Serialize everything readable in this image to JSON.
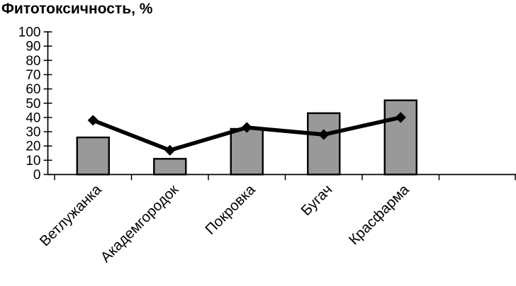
{
  "chart_data": {
    "type": "bar",
    "subtype": "bar-with-line-overlay",
    "title": "Фитотоксичность, %",
    "categories": [
      "Ветлужанка",
      "Академгородок",
      "Покровка",
      "Бугач",
      "Красфарма"
    ],
    "series": [
      {
        "name": "bars",
        "type": "bar",
        "values": [
          26,
          11,
          32,
          43,
          52
        ]
      },
      {
        "name": "line",
        "type": "line",
        "marker": "diamond",
        "values": [
          38,
          17,
          33,
          28,
          40
        ]
      }
    ],
    "xlabel": "",
    "ylabel": "",
    "ylim": [
      0,
      100
    ],
    "yticks": [
      0,
      10,
      20,
      30,
      40,
      50,
      60,
      70,
      80,
      90,
      100
    ],
    "grid": false,
    "legend": false,
    "colors": {
      "bar_fill": "#999999",
      "bar_border": "#000000",
      "line": "#000000",
      "axis": "#000000",
      "text": "#000000",
      "background": "#ffffff"
    }
  }
}
